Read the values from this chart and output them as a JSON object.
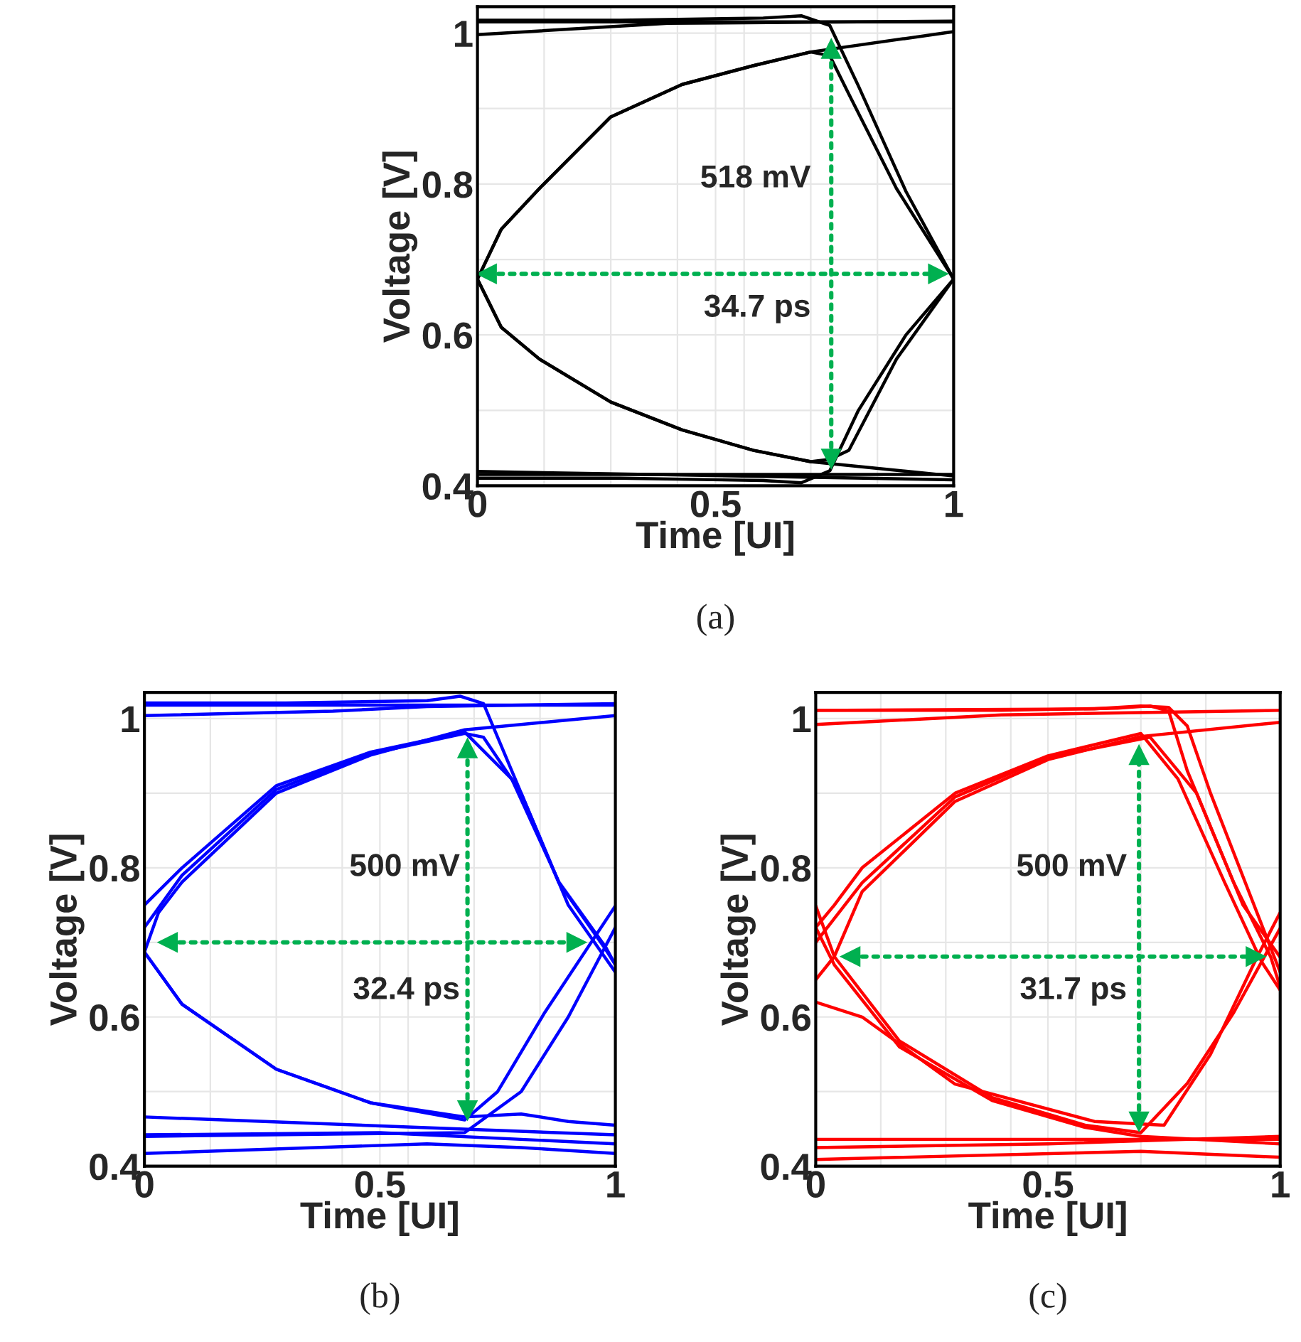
{
  "chart_data": [
    {
      "type": "line",
      "title": "(a)",
      "xlabel": "Time [UI]",
      "ylabel": "Voltage [V]",
      "xlim": [
        0,
        1
      ],
      "ylim": [
        0.4,
        1.035
      ],
      "xticks": [
        0,
        {
          "value": 0.14,
          "label": null
        },
        {
          "value": 0.28,
          "label": null
        },
        {
          "value": 0.42,
          "label": null
        },
        0.5,
        {
          "value": 0.56,
          "label": null
        },
        {
          "value": 0.7,
          "label": null
        },
        {
          "value": 0.84,
          "label": null
        },
        1
      ],
      "yticks": [
        0.4,
        {
          "value": 0.5,
          "label": null
        },
        0.6,
        {
          "value": 0.7,
          "label": null
        },
        0.8,
        {
          "value": 0.9,
          "label": null
        },
        1
      ],
      "grid": true,
      "annotations": [
        "518 mV",
        "34.7 ps"
      ],
      "series": [
        {
          "color": "#000000",
          "x": [
            0,
            0.3,
            0.6,
            0.68,
            0.74,
            0.8,
            0.9,
            1
          ],
          "values": [
            1.017,
            1.017,
            1.02,
            1.023,
            1.01,
            0.93,
            0.79,
            0.674
          ]
        },
        {
          "color": "#000000",
          "x": [
            0,
            1
          ],
          "values": [
            1.015,
            1.015
          ]
        },
        {
          "color": "#000000",
          "x": [
            0,
            0.4,
            1
          ],
          "values": [
            0.998,
            1.013,
            1.016
          ]
        },
        {
          "color": "#000000",
          "x": [
            0,
            0.05,
            0.13,
            0.28,
            0.43,
            0.58,
            0.7,
            1
          ],
          "values": [
            0.674,
            0.74,
            0.794,
            0.889,
            0.932,
            0.957,
            0.975,
            1.002
          ]
        },
        {
          "color": "#000000",
          "x": [
            0,
            0.05,
            0.13,
            0.28,
            0.43,
            0.58,
            0.7,
            0.74,
            0.78,
            0.88,
            1
          ],
          "values": [
            0.674,
            0.74,
            0.794,
            0.889,
            0.932,
            0.957,
            0.975,
            0.97,
            0.919,
            0.794,
            0.674
          ]
        },
        {
          "color": "#000000",
          "x": [
            0,
            0.05,
            0.13,
            0.28,
            0.43,
            0.58,
            0.7,
            1
          ],
          "values": [
            0.674,
            0.61,
            0.568,
            0.511,
            0.474,
            0.447,
            0.432,
            0.413
          ]
        },
        {
          "color": "#000000",
          "x": [
            0,
            0.05,
            0.13,
            0.28,
            0.43,
            0.58,
            0.7,
            0.74,
            0.78,
            0.88,
            1
          ],
          "values": [
            0.674,
            0.61,
            0.568,
            0.511,
            0.474,
            0.447,
            0.432,
            0.435,
            0.447,
            0.568,
            0.674
          ]
        },
        {
          "color": "#000000",
          "x": [
            0,
            0.3,
            0.6,
            0.68,
            0.74,
            0.8,
            0.9,
            1
          ],
          "values": [
            0.41,
            0.41,
            0.407,
            0.404,
            0.42,
            0.5,
            0.6,
            0.674
          ]
        },
        {
          "color": "#000000",
          "x": [
            0,
            1
          ],
          "values": [
            0.419,
            0.408
          ]
        },
        {
          "color": "#000000",
          "x": [
            0,
            1
          ],
          "values": [
            0.415,
            0.415
          ]
        },
        {
          "type": "line",
          "color": "#00b050",
          "line_style": "dotted",
          "marker": "triangle",
          "x": [
            0.743,
            0.743
          ],
          "values": [
            0.436,
            0.979
          ]
        },
        {
          "type": "line",
          "color": "#00b050",
          "line_style": "dotted",
          "marker": "triangle",
          "x": [
            0.02,
            0.967
          ],
          "values": [
            0.681,
            0.681
          ]
        }
      ]
    },
    {
      "type": "line",
      "title": "(b)",
      "xlabel": "Time [UI]",
      "ylabel": "Voltage [V]",
      "xlim": [
        0,
        1
      ],
      "ylim": [
        0.4,
        1.035
      ],
      "xticks": [
        0,
        {
          "value": 0.14,
          "label": null
        },
        {
          "value": 0.28,
          "label": null
        },
        {
          "value": 0.42,
          "label": null
        },
        0.5,
        {
          "value": 0.56,
          "label": null
        },
        {
          "value": 0.7,
          "label": null
        },
        {
          "value": 0.84,
          "label": null
        },
        1
      ],
      "yticks": [
        0.4,
        {
          "value": 0.5,
          "label": null
        },
        0.6,
        {
          "value": 0.7,
          "label": null
        },
        0.8,
        {
          "value": 0.9,
          "label": null
        },
        1
      ],
      "grid": true,
      "annotations": [
        "500 mV",
        "32.4 ps"
      ],
      "series": [
        {
          "color": "#0000ff",
          "x": [
            0,
            0.3,
            0.6,
            0.67,
            0.72,
            0.78,
            0.88,
            0.98,
            1
          ],
          "values": [
            1.021,
            1.021,
            1.024,
            1.03,
            1.02,
            0.93,
            0.78,
            0.69,
            0.67
          ]
        },
        {
          "color": "#0000ff",
          "x": [
            0,
            1
          ],
          "values": [
            1.018,
            1.018
          ]
        },
        {
          "color": "#0000ff",
          "x": [
            0,
            0.4,
            0.6,
            1
          ],
          "values": [
            1.004,
            1.01,
            1.016,
            1.02
          ]
        },
        {
          "color": "#0000ff",
          "x": [
            0,
            0.03,
            0.08,
            0.28,
            0.48,
            0.68,
            1
          ],
          "values": [
            0.687,
            0.74,
            0.781,
            0.9,
            0.951,
            0.985,
            1.004
          ]
        },
        {
          "color": "#0000ff",
          "x": [
            0,
            0.08,
            0.28,
            0.48,
            0.68,
            0.78,
            0.88,
            0.98,
            1
          ],
          "values": [
            0.75,
            0.8,
            0.91,
            0.955,
            0.982,
            0.919,
            0.781,
            0.693,
            0.67
          ]
        },
        {
          "color": "#0000ff",
          "x": [
            0,
            0.08,
            0.28,
            0.48,
            0.68,
            0.72,
            0.8,
            0.9,
            1
          ],
          "values": [
            0.72,
            0.79,
            0.905,
            0.953,
            0.98,
            0.975,
            0.9,
            0.75,
            0.66
          ]
        },
        {
          "color": "#0000ff",
          "x": [
            0,
            0.08,
            0.28,
            0.48,
            0.68,
            0.8,
            0.9,
            1
          ],
          "values": [
            0.687,
            0.617,
            0.53,
            0.485,
            0.466,
            0.47,
            0.46,
            0.455
          ]
        },
        {
          "color": "#0000ff",
          "x": [
            0,
            0.08,
            0.28,
            0.48,
            0.68,
            0.75,
            0.85,
            1
          ],
          "values": [
            0.687,
            0.617,
            0.53,
            0.485,
            0.462,
            0.5,
            0.606,
            0.749
          ]
        },
        {
          "color": "#0000ff",
          "x": [
            0,
            0.68,
            0.8,
            0.9,
            1
          ],
          "values": [
            0.44,
            0.445,
            0.5,
            0.6,
            0.72
          ]
        },
        {
          "color": "#0000ff",
          "x": [
            0,
            1
          ],
          "values": [
            0.466,
            0.442
          ]
        },
        {
          "color": "#0000ff",
          "x": [
            0,
            0.6,
            0.8,
            1
          ],
          "values": [
            0.417,
            0.43,
            0.425,
            0.417
          ]
        },
        {
          "color": "#0000ff",
          "x": [
            0,
            0.5,
            1
          ],
          "values": [
            0.442,
            0.445,
            0.43
          ]
        },
        {
          "type": "line",
          "color": "#00b050",
          "line_style": "dotted",
          "marker": "triangle",
          "x": [
            0.686,
            0.686
          ],
          "values": [
            0.475,
            0.96
          ]
        },
        {
          "type": "line",
          "color": "#00b050",
          "line_style": "dotted",
          "marker": "triangle",
          "x": [
            0.05,
            0.917
          ],
          "values": [
            0.7,
            0.7
          ]
        }
      ]
    },
    {
      "type": "line",
      "title": "(c)",
      "xlabel": "Time [UI]",
      "ylabel": "Voltage [V]",
      "xlim": [
        0,
        1
      ],
      "ylim": [
        0.4,
        1.035
      ],
      "xticks": [
        0,
        {
          "value": 0.14,
          "label": null
        },
        {
          "value": 0.28,
          "label": null
        },
        {
          "value": 0.42,
          "label": null
        },
        0.5,
        {
          "value": 0.56,
          "label": null
        },
        {
          "value": 0.7,
          "label": null
        },
        {
          "value": 0.84,
          "label": null
        },
        1
      ],
      "yticks": [
        0.4,
        {
          "value": 0.5,
          "label": null
        },
        0.6,
        {
          "value": 0.7,
          "label": null
        },
        0.8,
        {
          "value": 0.9,
          "label": null
        },
        1
      ],
      "grid": true,
      "annotations": [
        "500 mV",
        "31.7 ps"
      ],
      "series": [
        {
          "color": "#ff0000",
          "x": [
            0,
            0.4,
            0.65,
            0.72,
            0.76,
            0.8,
            0.9,
            0.98,
            1
          ],
          "values": [
            1.011,
            1.011,
            1.014,
            1.017,
            1.01,
            0.93,
            0.78,
            0.68,
            0.64
          ]
        },
        {
          "color": "#ff0000",
          "x": [
            0,
            0.6,
            0.7,
            0.76,
            0.8,
            0.85,
            0.95,
            1
          ],
          "values": [
            1.011,
            1.013,
            1.017,
            1.015,
            0.99,
            0.9,
            0.74,
            0.66
          ]
        },
        {
          "color": "#ff0000",
          "x": [
            0,
            0.4,
            1
          ],
          "values": [
            0.992,
            1.005,
            1.011
          ]
        },
        {
          "color": "#ff0000",
          "x": [
            0,
            0.04,
            0.1,
            0.3,
            0.5,
            0.7,
            1
          ],
          "values": [
            0.65,
            0.681,
            0.768,
            0.889,
            0.945,
            0.976,
            0.995
          ]
        },
        {
          "color": "#ff0000",
          "x": [
            0,
            0.04,
            0.1,
            0.3,
            0.5,
            0.7,
            0.78,
            0.88,
            0.96,
            1
          ],
          "values": [
            0.72,
            0.75,
            0.8,
            0.9,
            0.95,
            0.98,
            0.919,
            0.781,
            0.674,
            0.636
          ]
        },
        {
          "color": "#ff0000",
          "x": [
            0,
            0.1,
            0.3,
            0.5,
            0.72,
            0.82,
            0.92,
            1
          ],
          "values": [
            0.7,
            0.78,
            0.895,
            0.948,
            0.975,
            0.9,
            0.75,
            0.68
          ]
        },
        {
          "color": "#ff0000",
          "x": [
            0,
            0.04,
            0.18,
            0.38,
            0.58,
            0.7,
            0.8,
            0.9,
            0.96,
            1
          ],
          "values": [
            0.749,
            0.681,
            0.568,
            0.492,
            0.455,
            0.445,
            0.511,
            0.606,
            0.674,
            0.719
          ]
        },
        {
          "color": "#ff0000",
          "x": [
            0,
            0.04,
            0.18,
            0.38,
            0.58,
            0.7,
            1
          ],
          "values": [
            0.72,
            0.67,
            0.56,
            0.488,
            0.452,
            0.44,
            0.43
          ]
        },
        {
          "color": "#ff0000",
          "x": [
            0,
            0.1,
            0.3,
            0.6,
            0.75,
            0.85,
            0.95,
            1
          ],
          "values": [
            0.62,
            0.6,
            0.51,
            0.46,
            0.455,
            0.55,
            0.68,
            0.74
          ]
        },
        {
          "color": "#ff0000",
          "x": [
            0,
            1
          ],
          "values": [
            0.436,
            0.436
          ]
        },
        {
          "color": "#ff0000",
          "x": [
            0,
            0.7,
            1
          ],
          "values": [
            0.409,
            0.42,
            0.412
          ]
        },
        {
          "color": "#ff0000",
          "x": [
            0,
            0.5,
            1
          ],
          "values": [
            0.425,
            0.43,
            0.44
          ]
        },
        {
          "type": "line",
          "color": "#00b050",
          "line_style": "dotted",
          "marker": "triangle",
          "x": [
            0.696,
            0.696
          ],
          "values": [
            0.46,
            0.951
          ]
        },
        {
          "type": "line",
          "color": "#00b050",
          "line_style": "dotted",
          "marker": "triangle",
          "x": [
            0.075,
            0.947
          ],
          "values": [
            0.681,
            0.681
          ]
        }
      ]
    }
  ]
}
